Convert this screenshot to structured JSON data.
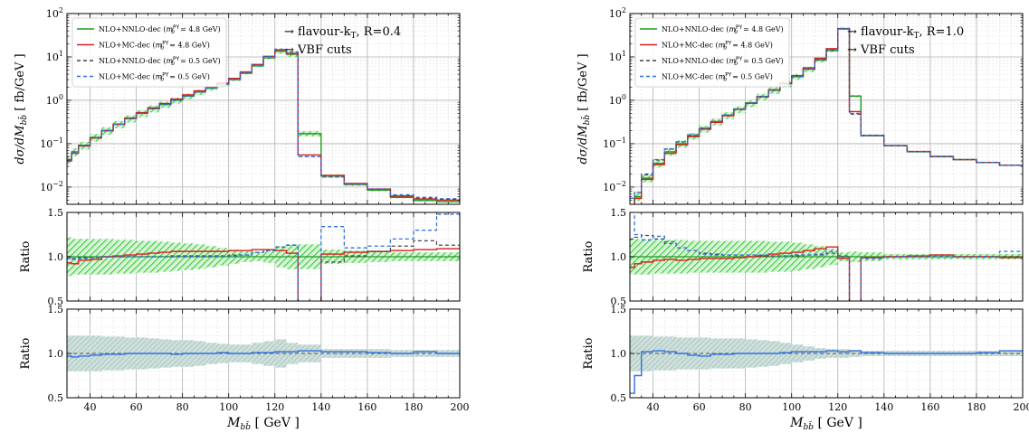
{
  "colors": {
    "nnlo": "#1f9a1f",
    "mc": "#dd1c1c",
    "nnlo_low": "#444444",
    "mc_low": "#2f6fe0",
    "band_green": "#3cc83c",
    "band_gray": "#8fb8b0"
  },
  "chart_data": [
    {
      "type": "line",
      "title": "",
      "ylabel": "dσ/dM_{b b̄} [ fb/GeV ]",
      "ylabel_text": "dσ/dM",
      "ylabel_sub": "bb̄",
      "ylabel_unit": " [ fb/GeV ]",
      "ratio_ylabel": "Ratio",
      "xlabel": "M_{b b̄} [ GeV ]",
      "xlabel_text": "M",
      "xlabel_sub": "bb̄",
      "xlabel_unit": " [ GeV ]",
      "annotations": [
        "→ flavour-k",
        "→ VBF cuts"
      ],
      "annotation_sub": "T",
      "annotation_tail": ", R=0.4",
      "legend_title_prefix": "",
      "legend": [
        {
          "name": "NLO+NNLO-dec",
          "mass_label": "= 4.8 GeV"
        },
        {
          "name": "NLO+MC-dec",
          "mass_label": "= 4.8 GeV"
        },
        {
          "name": "NLO+NNLO-dec",
          "mass_label": "= 0.5 GeV"
        },
        {
          "name": "NLO+MC-dec",
          "mass_label": "= 0.5 GeV"
        }
      ],
      "legend_mass_symbol": "m",
      "legend_mass_sup": "PY",
      "legend_mass_sub": "b",
      "legend_placement": "top-left",
      "xlim": [
        30,
        200
      ],
      "ylim_main": [
        0.004,
        100
      ],
      "ylim_ratio": [
        0.5,
        1.5
      ],
      "yscale_main": "log",
      "grid": true,
      "x_ticks": [
        "40",
        "60",
        "80",
        "100",
        "120",
        "140",
        "160",
        "180",
        "200"
      ],
      "main_y_ticks": [
        "10^-2",
        "10^-1",
        "10^0",
        "10^1",
        "10^2"
      ],
      "ratio_y_ticks": [
        "0.5",
        "1.0",
        "1.5"
      ],
      "bin_edges": [
        30,
        32,
        35,
        40,
        45,
        50,
        55,
        60,
        65,
        70,
        75,
        80,
        85,
        90,
        95,
        100,
        105,
        110,
        115,
        120,
        125,
        130,
        140,
        150,
        160,
        170,
        180,
        190,
        200
      ],
      "series": [
        {
          "name": "NLO+NNLO-dec",
          "values": [
            0.043,
            0.065,
            0.092,
            0.14,
            0.2,
            0.28,
            0.38,
            0.5,
            0.64,
            0.8,
            1.0,
            1.25,
            1.55,
            1.9,
            2.35,
            3.0,
            4.2,
            6.2,
            9.5,
            13.5,
            11.5,
            0.17,
            0.018,
            0.0115,
            0.0085,
            0.0058,
            0.0049,
            0.0046
          ]
        },
        {
          "name": "NLO+MC-dec",
          "values": [
            0.04,
            0.06,
            0.088,
            0.135,
            0.2,
            0.28,
            0.39,
            0.52,
            0.67,
            0.84,
            1.06,
            1.33,
            1.65,
            2.02,
            2.5,
            3.2,
            4.5,
            6.7,
            10.3,
            14.5,
            12.0,
            0.055,
            0.0185,
            0.0121,
            0.009,
            0.0062,
            0.0053,
            0.005
          ]
        },
        {
          "name": "NLO+NNLO-dec",
          "values": [
            0.043,
            0.064,
            0.091,
            0.139,
            0.2,
            0.28,
            0.38,
            0.5,
            0.64,
            0.8,
            1.01,
            1.26,
            1.57,
            1.92,
            2.38,
            3.05,
            4.3,
            6.5,
            10.2,
            15.0,
            13.0,
            0.05,
            0.017,
            0.0116,
            0.009,
            0.0065,
            0.0056,
            0.0052
          ]
        },
        {
          "name": "NLO+MC-dec",
          "values": [
            0.042,
            0.063,
            0.09,
            0.138,
            0.2,
            0.28,
            0.38,
            0.5,
            0.64,
            0.8,
            1.0,
            1.25,
            1.56,
            1.91,
            2.37,
            3.04,
            4.3,
            6.5,
            10.2,
            15.0,
            13.0,
            0.05,
            0.017,
            0.0116,
            0.009,
            0.0066,
            0.0058,
            0.0054
          ]
        }
      ],
      "band_main_rel": [
        0.22,
        0.2,
        0.2,
        0.2,
        0.2,
        0.19,
        0.19,
        0.18,
        0.18,
        0.17,
        0.16,
        0.15,
        0.14,
        0.12,
        0.1,
        0.08,
        0.06,
        0.05,
        0.07,
        0.12,
        0.14,
        0.14,
        0.08,
        0.07,
        0.06,
        0.05,
        0.05,
        0.05
      ],
      "ratio1_series": [
        {
          "name": "NLO+MC-dec",
          "values": [
            0.93,
            0.92,
            0.96,
            0.97,
            1.0,
            1.01,
            1.02,
            1.03,
            1.04,
            1.05,
            1.06,
            1.06,
            1.06,
            1.06,
            1.06,
            1.07,
            1.07,
            1.08,
            1.08,
            1.07,
            1.04,
            0.32,
            1.03,
            1.05,
            1.06,
            1.07,
            1.08,
            1.09
          ]
        },
        {
          "name": "NLO+NNLO-dec",
          "values": [
            1.0,
            0.98,
            0.99,
            0.99,
            1.0,
            1.0,
            1.0,
            1.0,
            1.0,
            1.0,
            1.01,
            1.01,
            1.01,
            1.01,
            1.01,
            1.02,
            1.02,
            1.05,
            1.07,
            1.11,
            1.13,
            0.29,
            0.94,
            1.01,
            1.06,
            1.12,
            1.18,
            1.13
          ]
        },
        {
          "name": "NLO+MC-dec",
          "values": [
            0.98,
            0.97,
            0.98,
            0.99,
            1.0,
            1.0,
            1.0,
            1.0,
            1.0,
            1.0,
            1.0,
            1.0,
            1.0,
            1.0,
            1.01,
            1.01,
            1.02,
            1.05,
            1.07,
            1.11,
            1.13,
            0.29,
            1.34,
            1.1,
            1.12,
            1.2,
            1.3,
            1.48
          ]
        }
      ],
      "ratio1_band": [
        0.22,
        0.2,
        0.2,
        0.2,
        0.2,
        0.19,
        0.19,
        0.18,
        0.18,
        0.17,
        0.16,
        0.15,
        0.14,
        0.12,
        0.1,
        0.08,
        0.06,
        0.05,
        0.07,
        0.12,
        0.14,
        0.14,
        0.08,
        0.07,
        0.06,
        0.05,
        0.05,
        0.05
      ],
      "ratio2_series": [
        {
          "name": "NLO+MC-dec",
          "values": [
            0.97,
            0.96,
            0.97,
            0.98,
            0.99,
            0.99,
            1.0,
            1.0,
            1.0,
            1.0,
            0.99,
            1.0,
            1.0,
            1.0,
            1.01,
            1.0,
            1.0,
            1.01,
            1.01,
            1.02,
            1.02,
            1.03,
            1.02,
            1.02,
            1.01,
            1.0,
            1.02,
            1.0
          ]
        }
      ],
      "ratio2_band": [
        0.2,
        0.2,
        0.2,
        0.2,
        0.19,
        0.19,
        0.18,
        0.18,
        0.17,
        0.16,
        0.15,
        0.15,
        0.14,
        0.12,
        0.11,
        0.1,
        0.1,
        0.12,
        0.14,
        0.16,
        0.12,
        0.1,
        0.05,
        0.05,
        0.05,
        0.04,
        0.04,
        0.04
      ]
    },
    {
      "type": "line",
      "title": "",
      "ylabel": "dσ/dM_{b b̄} [ fb/GeV ]",
      "ylabel_text": "dσ/dM",
      "ylabel_sub": "bb̄",
      "ylabel_unit": " [ fb/GeV ]",
      "ratio_ylabel": "Ratio",
      "xlabel": "M_{b b̄} [ GeV ]",
      "xlabel_text": "M",
      "xlabel_sub": "bb̄",
      "xlabel_unit": " [ GeV ]",
      "annotations": [
        "→ flavour-k",
        "→ VBF cuts"
      ],
      "annotation_sub": "T",
      "annotation_tail": ", R=1.0",
      "legend": [
        {
          "name": "NLO+NNLO-dec",
          "mass_label": "= 4.8 GeV"
        },
        {
          "name": "NLO+MC-dec",
          "mass_label": "= 4.8 GeV"
        },
        {
          "name": "NLO+NNLO-dec",
          "mass_label": "= 0.5 GeV"
        },
        {
          "name": "NLO+MC-dec",
          "mass_label": "= 0.5 GeV"
        }
      ],
      "legend_mass_symbol": "m",
      "legend_mass_sup": "PY",
      "legend_mass_sub": "b",
      "legend_placement": "top-left",
      "xlim": [
        30,
        200
      ],
      "ylim_main": [
        0.004,
        100
      ],
      "ylim_ratio": [
        0.5,
        1.5
      ],
      "yscale_main": "log",
      "grid": true,
      "x_ticks": [
        "40",
        "60",
        "80",
        "100",
        "120",
        "140",
        "160",
        "180",
        "200"
      ],
      "main_y_ticks": [
        "10^-2",
        "10^-1",
        "10^0",
        "10^1",
        "10^2"
      ],
      "ratio_y_ticks": [
        "0.5",
        "1.0",
        "1.5"
      ],
      "bin_edges": [
        30,
        32,
        35,
        40,
        45,
        50,
        55,
        60,
        65,
        70,
        75,
        80,
        85,
        90,
        95,
        100,
        105,
        110,
        115,
        120,
        125,
        130,
        140,
        150,
        160,
        170,
        180,
        190,
        200
      ],
      "series": [
        {
          "name": "NLO+NNLO-dec",
          "values": [
            0.0025,
            0.006,
            0.016,
            0.035,
            0.065,
            0.1,
            0.15,
            0.22,
            0.32,
            0.45,
            0.62,
            0.85,
            1.2,
            1.7,
            2.4,
            3.5,
            5.2,
            8.5,
            14.0,
            45.0,
            1.25,
            0.155,
            0.09,
            0.065,
            0.05,
            0.043,
            0.037,
            0.032
          ]
        },
        {
          "name": "NLO+MC-dec",
          "values": [
            0.0022,
            0.0055,
            0.015,
            0.033,
            0.06,
            0.095,
            0.145,
            0.215,
            0.31,
            0.44,
            0.62,
            0.86,
            1.22,
            1.75,
            2.5,
            3.7,
            5.6,
            9.3,
            15.5,
            44.0,
            0.55,
            0.153,
            0.09,
            0.066,
            0.051,
            0.043,
            0.037,
            0.032
          ]
        },
        {
          "name": "NLO+NNLO-dec",
          "values": [
            0.003,
            0.0075,
            0.02,
            0.042,
            0.075,
            0.11,
            0.16,
            0.23,
            0.33,
            0.46,
            0.63,
            0.87,
            1.21,
            1.71,
            2.42,
            3.55,
            5.3,
            8.7,
            14.6,
            45.0,
            0.48,
            0.152,
            0.09,
            0.065,
            0.05,
            0.043,
            0.037,
            0.032
          ]
        },
        {
          "name": "NLO+MC-dec",
          "values": [
            0.0055,
            0.0075,
            0.019,
            0.043,
            0.076,
            0.11,
            0.16,
            0.225,
            0.325,
            0.46,
            0.63,
            0.87,
            1.22,
            1.72,
            2.43,
            3.56,
            5.3,
            8.8,
            14.8,
            45.5,
            0.5,
            0.152,
            0.09,
            0.065,
            0.05,
            0.043,
            0.037,
            0.032
          ]
        }
      ],
      "band_main_rel": [
        0.2,
        0.2,
        0.2,
        0.19,
        0.19,
        0.19,
        0.18,
        0.18,
        0.18,
        0.18,
        0.18,
        0.18,
        0.18,
        0.17,
        0.17,
        0.16,
        0.14,
        0.12,
        0.09,
        0.05,
        0.06,
        0.05,
        0.03,
        0.03,
        0.03,
        0.03,
        0.03,
        0.03
      ],
      "ratio1_series": [
        {
          "name": "NLO+MC-dec",
          "values": [
            0.88,
            0.92,
            0.94,
            0.96,
            0.97,
            0.96,
            0.97,
            0.98,
            0.98,
            0.98,
            0.99,
            1.0,
            1.01,
            1.03,
            1.04,
            1.05,
            1.07,
            1.09,
            1.11,
            0.98,
            0.44,
            0.99,
            1.0,
            1.01,
            1.02,
            1.0,
            1.0,
            0.99
          ]
        },
        {
          "name": "NLO+NNLO-dec",
          "values": [
            1.2,
            1.22,
            1.24,
            1.2,
            1.15,
            1.1,
            1.07,
            1.04,
            1.03,
            1.02,
            1.02,
            1.02,
            1.01,
            1.01,
            1.01,
            1.01,
            1.02,
            1.02,
            1.04,
            1.0,
            0.38,
            0.98,
            1.0,
            1.0,
            1.0,
            1.0,
            1.0,
            1.0
          ]
        },
        {
          "name": "NLO+MC-dec",
          "values": [
            2.2,
            1.25,
            1.19,
            1.23,
            1.17,
            1.1,
            1.07,
            1.03,
            1.02,
            1.02,
            1.02,
            1.02,
            1.02,
            1.01,
            1.01,
            1.02,
            1.02,
            1.03,
            1.06,
            1.01,
            0.4,
            0.98,
            1.0,
            1.0,
            1.0,
            1.0,
            1.0,
            1.06
          ]
        }
      ],
      "ratio1_band": [
        0.2,
        0.2,
        0.2,
        0.19,
        0.19,
        0.19,
        0.18,
        0.18,
        0.18,
        0.18,
        0.18,
        0.18,
        0.18,
        0.17,
        0.17,
        0.16,
        0.14,
        0.12,
        0.09,
        0.05,
        0.06,
        0.05,
        0.03,
        0.03,
        0.03,
        0.03,
        0.03,
        0.03
      ],
      "ratio2_series": [
        {
          "name": "NLO+MC-dec",
          "values": [
            0.55,
            0.75,
            1.02,
            1.03,
            1.02,
            1.0,
            0.98,
            0.97,
            0.99,
            0.99,
            1.0,
            1.0,
            1.0,
            1.0,
            1.01,
            1.02,
            1.02,
            1.02,
            1.03,
            1.02,
            1.03,
            1.01,
            1.0,
            1.0,
            1.0,
            1.0,
            1.01,
            1.03
          ]
        }
      ],
      "ratio2_band": [
        0.2,
        0.2,
        0.2,
        0.19,
        0.19,
        0.18,
        0.18,
        0.18,
        0.17,
        0.17,
        0.17,
        0.16,
        0.15,
        0.14,
        0.12,
        0.1,
        0.08,
        0.06,
        0.05,
        0.05,
        0.04,
        0.03,
        0.03,
        0.03,
        0.03,
        0.03,
        0.03,
        0.03
      ]
    }
  ]
}
